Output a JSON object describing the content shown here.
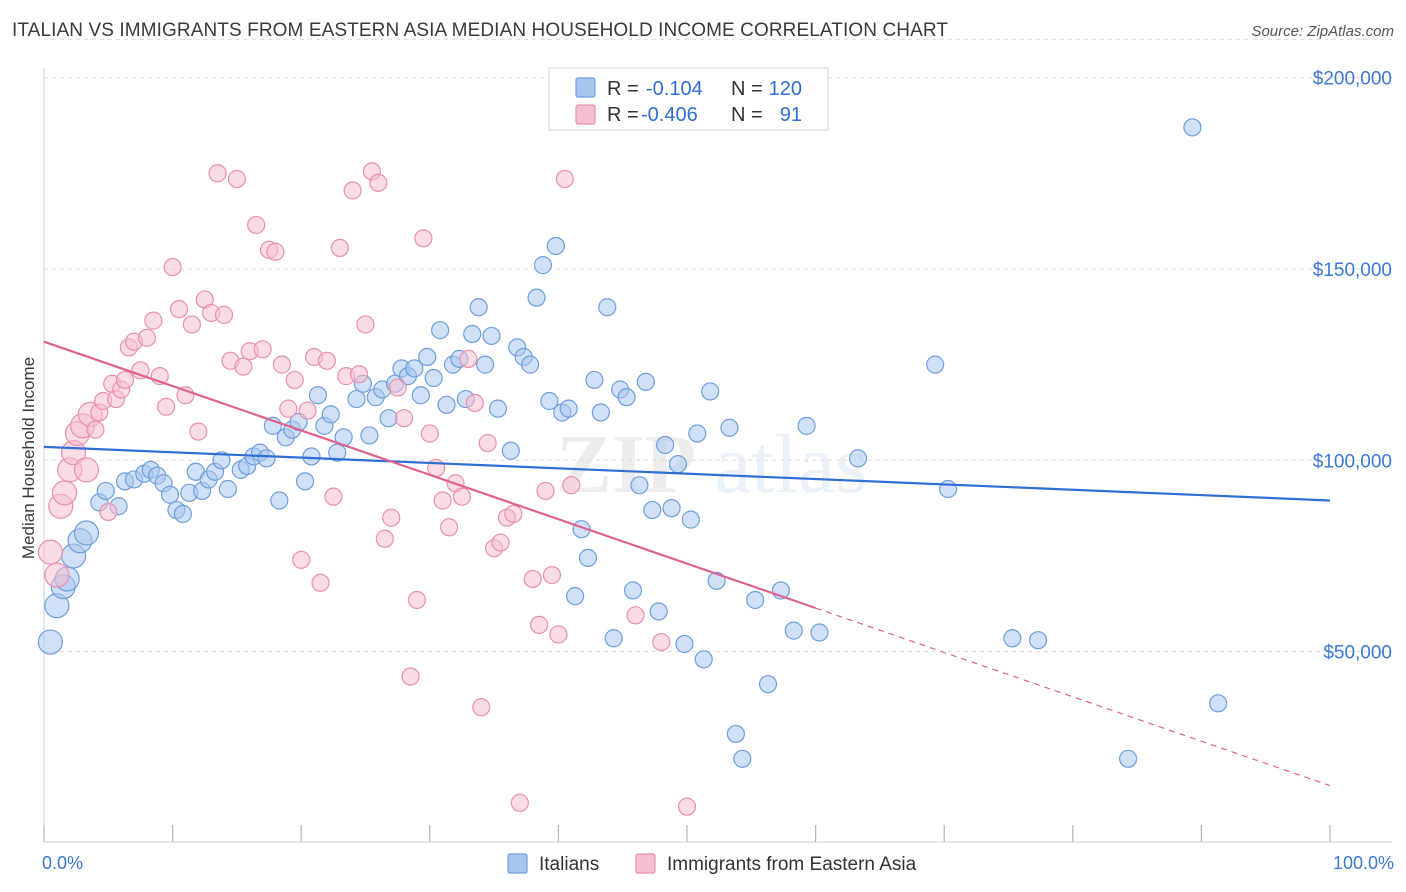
{
  "title": "ITALIAN VS IMMIGRANTS FROM EASTERN ASIA MEDIAN HOUSEHOLD INCOME CORRELATION CHART",
  "source": "Source: ZipAtlas.com",
  "watermark": {
    "zip": "ZIP",
    "atlas": "atlas"
  },
  "colors": {
    "italians_fill": "#a9c6ee",
    "italians_stroke": "#6e9fdc",
    "italians_line": "#2f6ed6",
    "immigrants_fill": "#f6bfd0",
    "immigrants_stroke": "#e990ad",
    "immigrants_line": "#e0628f",
    "axis_label": "#3b78d0",
    "grid": "#dcdcdc"
  },
  "legend": {
    "rows": [
      {
        "r_label": "R =",
        "r_value": "-0.104",
        "n_label": "N =",
        "n_value": "120"
      },
      {
        "r_label": "R =",
        "r_value": "-0.406",
        "n_label": "N =",
        "n_value": "91"
      }
    ]
  },
  "chart_data": {
    "type": "scatter",
    "title": "ITALIAN VS IMMIGRANTS FROM EASTERN ASIA MEDIAN HOUSEHOLD INCOME CORRELATION CHART",
    "xlabel": "",
    "ylabel": "Median Household Income",
    "xlim": [
      0,
      100
    ],
    "ylim": [
      0,
      210000
    ],
    "x_tick_labels": [
      "0.0%",
      "100.0%"
    ],
    "y_ticks": [
      50000,
      100000,
      150000,
      200000
    ],
    "y_tick_labels": [
      "$50,000",
      "$100,000",
      "$150,000",
      "$200,000"
    ],
    "grid": "horizontal dashed",
    "legend_placement": "top-center",
    "series": [
      {
        "name": "Italians",
        "r": -0.104,
        "n": 120,
        "trend": {
          "x": [
            0,
            100
          ],
          "y": [
            103500,
            89500
          ],
          "solid_to": 100
        },
        "points": [
          [
            0.5,
            52500
          ],
          [
            1,
            62000
          ],
          [
            1.5,
            67000
          ],
          [
            1.8,
            69000
          ],
          [
            2.3,
            75000
          ],
          [
            2.8,
            79000
          ],
          [
            3.3,
            81000
          ],
          [
            4.3,
            89000
          ],
          [
            4.8,
            92000
          ],
          [
            5.8,
            88000
          ],
          [
            6.3,
            94500
          ],
          [
            7,
            95000
          ],
          [
            7.8,
            96500
          ],
          [
            8.3,
            97500
          ],
          [
            8.8,
            96000
          ],
          [
            9.3,
            94000
          ],
          [
            9.8,
            91000
          ],
          [
            10.3,
            87000
          ],
          [
            10.8,
            86000
          ],
          [
            11.3,
            91500
          ],
          [
            11.8,
            97000
          ],
          [
            12.3,
            92000
          ],
          [
            12.8,
            95000
          ],
          [
            13.3,
            97000
          ],
          [
            13.8,
            100000
          ],
          [
            14.3,
            92500
          ],
          [
            15.3,
            97500
          ],
          [
            15.8,
            98500
          ],
          [
            16.3,
            101000
          ],
          [
            16.8,
            102000
          ],
          [
            17.3,
            100500
          ],
          [
            17.8,
            109000
          ],
          [
            18.3,
            89500
          ],
          [
            18.8,
            106000
          ],
          [
            19.3,
            108000
          ],
          [
            19.8,
            110000
          ],
          [
            20.3,
            94500
          ],
          [
            20.8,
            101000
          ],
          [
            21.3,
            117000
          ],
          [
            21.8,
            109000
          ],
          [
            22.3,
            112000
          ],
          [
            22.8,
            102000
          ],
          [
            23.3,
            106000
          ],
          [
            24.3,
            116000
          ],
          [
            24.8,
            120000
          ],
          [
            25.3,
            106500
          ],
          [
            25.8,
            116500
          ],
          [
            26.3,
            118500
          ],
          [
            26.8,
            111000
          ],
          [
            27.3,
            120000
          ],
          [
            27.8,
            124000
          ],
          [
            28.3,
            122000
          ],
          [
            28.8,
            124000
          ],
          [
            29.3,
            117000
          ],
          [
            29.8,
            127000
          ],
          [
            30.3,
            121500
          ],
          [
            30.8,
            134000
          ],
          [
            31.3,
            114500
          ],
          [
            31.8,
            125000
          ],
          [
            32.3,
            126500
          ],
          [
            32.8,
            116000
          ],
          [
            33.3,
            133000
          ],
          [
            33.8,
            140000
          ],
          [
            34.3,
            125000
          ],
          [
            34.8,
            132500
          ],
          [
            35.3,
            113500
          ],
          [
            36.3,
            102500
          ],
          [
            36.8,
            129500
          ],
          [
            37.3,
            127000
          ],
          [
            37.8,
            125000
          ],
          [
            38.3,
            142500
          ],
          [
            38.8,
            151000
          ],
          [
            39.3,
            115500
          ],
          [
            39.8,
            156000
          ],
          [
            40.3,
            112500
          ],
          [
            40.8,
            113500
          ],
          [
            41.3,
            64500
          ],
          [
            41.8,
            82000
          ],
          [
            42.3,
            74500
          ],
          [
            42.8,
            121000
          ],
          [
            43.3,
            112500
          ],
          [
            43.8,
            140000
          ],
          [
            44.3,
            53500
          ],
          [
            44.8,
            118500
          ],
          [
            45.3,
            116500
          ],
          [
            45.8,
            66000
          ],
          [
            46.3,
            93500
          ],
          [
            46.8,
            120500
          ],
          [
            47.3,
            87000
          ],
          [
            47.8,
            60500
          ],
          [
            48.3,
            104000
          ],
          [
            48.8,
            87500
          ],
          [
            49.3,
            99000
          ],
          [
            49.8,
            52000
          ],
          [
            50.3,
            84500
          ],
          [
            50.8,
            107000
          ],
          [
            51.3,
            48000
          ],
          [
            51.8,
            118000
          ],
          [
            52.3,
            68500
          ],
          [
            53.3,
            108500
          ],
          [
            53.8,
            28500
          ],
          [
            54.3,
            22000
          ],
          [
            55.3,
            63500
          ],
          [
            56.3,
            41500
          ],
          [
            57.3,
            66000
          ],
          [
            58.3,
            55500
          ],
          [
            59.3,
            109000
          ],
          [
            60.3,
            55000
          ],
          [
            63.3,
            100500
          ],
          [
            69.3,
            125000
          ],
          [
            70.3,
            92500
          ],
          [
            75.3,
            53500
          ],
          [
            77.3,
            53000
          ],
          [
            84.3,
            22000
          ],
          [
            89.3,
            187000
          ],
          [
            91.3,
            36500
          ]
        ]
      },
      {
        "name": "Immigrants from Eastern Asia",
        "r": -0.406,
        "n": 91,
        "trend": {
          "x": [
            0,
            100
          ],
          "y": [
            131000,
            15000
          ],
          "solid_to": 60
        },
        "points": [
          [
            0.5,
            76000
          ],
          [
            1,
            70000
          ],
          [
            1.3,
            88000
          ],
          [
            1.6,
            91500
          ],
          [
            2,
            97500
          ],
          [
            2.3,
            102000
          ],
          [
            2.6,
            107000
          ],
          [
            3,
            109000
          ],
          [
            3.3,
            97500
          ],
          [
            3.6,
            112000
          ],
          [
            4,
            108000
          ],
          [
            4.3,
            112500
          ],
          [
            4.6,
            115500
          ],
          [
            5,
            86500
          ],
          [
            5.3,
            120000
          ],
          [
            5.6,
            116000
          ],
          [
            6,
            118500
          ],
          [
            6.3,
            121000
          ],
          [
            6.6,
            129500
          ],
          [
            7,
            131000
          ],
          [
            7.5,
            123500
          ],
          [
            8,
            132000
          ],
          [
            8.5,
            136500
          ],
          [
            9,
            122000
          ],
          [
            9.5,
            114000
          ],
          [
            10,
            150500
          ],
          [
            10.5,
            139500
          ],
          [
            11,
            117000
          ],
          [
            11.5,
            135500
          ],
          [
            12,
            107500
          ],
          [
            12.5,
            142000
          ],
          [
            13,
            138500
          ],
          [
            13.5,
            175000
          ],
          [
            14,
            138000
          ],
          [
            14.5,
            126000
          ],
          [
            15,
            173500
          ],
          [
            15.5,
            124500
          ],
          [
            16,
            128500
          ],
          [
            16.5,
            161500
          ],
          [
            17,
            129000
          ],
          [
            17.5,
            155000
          ],
          [
            18,
            154500
          ],
          [
            18.5,
            125000
          ],
          [
            19,
            113500
          ],
          [
            19.5,
            121000
          ],
          [
            20,
            74000
          ],
          [
            20.5,
            113000
          ],
          [
            21,
            127000
          ],
          [
            21.5,
            68000
          ],
          [
            22,
            126000
          ],
          [
            22.5,
            90500
          ],
          [
            23,
            155500
          ],
          [
            23.5,
            122000
          ],
          [
            24,
            170500
          ],
          [
            24.5,
            122500
          ],
          [
            25,
            135500
          ],
          [
            25.5,
            175500
          ],
          [
            26,
            172500
          ],
          [
            26.5,
            79500
          ],
          [
            27,
            85000
          ],
          [
            27.5,
            119000
          ],
          [
            28,
            111000
          ],
          [
            28.5,
            43500
          ],
          [
            29,
            63500
          ],
          [
            29.5,
            158000
          ],
          [
            30,
            107000
          ],
          [
            30.5,
            98000
          ],
          [
            31,
            89500
          ],
          [
            31.5,
            82500
          ],
          [
            32,
            94000
          ],
          [
            32.5,
            90500
          ],
          [
            33,
            126500
          ],
          [
            33.5,
            115000
          ],
          [
            34,
            35500
          ],
          [
            34.5,
            104500
          ],
          [
            35,
            77000
          ],
          [
            35.5,
            78500
          ],
          [
            36,
            85000
          ],
          [
            36.5,
            86000
          ],
          [
            37,
            10500
          ],
          [
            38,
            69000
          ],
          [
            38.5,
            57000
          ],
          [
            39,
            92000
          ],
          [
            39.5,
            70000
          ],
          [
            40,
            54500
          ],
          [
            40.5,
            173500
          ],
          [
            41,
            93500
          ],
          [
            46,
            59500
          ],
          [
            48,
            52500
          ],
          [
            50,
            9500
          ]
        ]
      }
    ]
  },
  "bottom_legend": [
    "Italians",
    "Immigrants from Eastern Asia"
  ]
}
